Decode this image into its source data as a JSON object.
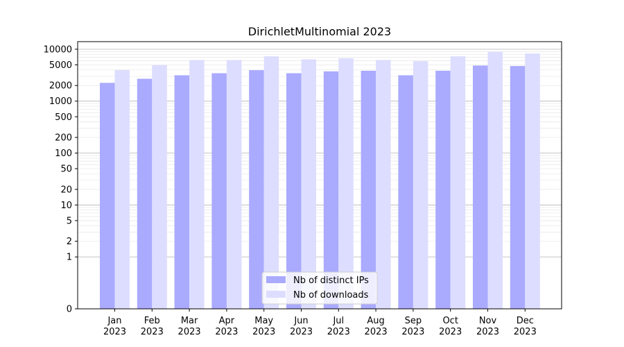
{
  "chart_data": {
    "type": "bar",
    "title": "DirichletMultinomial 2023",
    "xlabel": "",
    "ylabel": "",
    "yscale": "symlog",
    "ylim": [
      0,
      14000
    ],
    "grid": true,
    "legend_position": "bottom-center",
    "categories": [
      {
        "month": "Jan",
        "year": "2023"
      },
      {
        "month": "Feb",
        "year": "2023"
      },
      {
        "month": "Mar",
        "year": "2023"
      },
      {
        "month": "Apr",
        "year": "2023"
      },
      {
        "month": "May",
        "year": "2023"
      },
      {
        "month": "Jun",
        "year": "2023"
      },
      {
        "month": "Jul",
        "year": "2023"
      },
      {
        "month": "Aug",
        "year": "2023"
      },
      {
        "month": "Sep",
        "year": "2023"
      },
      {
        "month": "Oct",
        "year": "2023"
      },
      {
        "month": "Nov",
        "year": "2023"
      },
      {
        "month": "Dec",
        "year": "2023"
      }
    ],
    "series": [
      {
        "name": "Nb of distinct IPs",
        "color": "#aaaaff",
        "values": [
          2250,
          2700,
          3150,
          3450,
          3950,
          3450,
          3750,
          3850,
          3150,
          3850,
          4850,
          4750
        ]
      },
      {
        "name": "Nb of downloads",
        "color": "#ddddff",
        "values": [
          3950,
          4950,
          6200,
          6200,
          7300,
          6400,
          6700,
          6200,
          5900,
          7300,
          8900,
          8300
        ]
      }
    ],
    "y_ticks": [
      {
        "value": 0,
        "label": "0"
      },
      {
        "value": 1,
        "label": "1"
      },
      {
        "value": 2,
        "label": "2"
      },
      {
        "value": 5,
        "label": "5"
      },
      {
        "value": 10,
        "label": "10"
      },
      {
        "value": 20,
        "label": "20"
      },
      {
        "value": 50,
        "label": "50"
      },
      {
        "value": 100,
        "label": "100"
      },
      {
        "value": 200,
        "label": "200"
      },
      {
        "value": 500,
        "label": "500"
      },
      {
        "value": 1000,
        "label": "1000"
      },
      {
        "value": 2000,
        "label": "2000"
      },
      {
        "value": 5000,
        "label": "5000"
      },
      {
        "value": 10000,
        "label": "10000"
      }
    ]
  }
}
